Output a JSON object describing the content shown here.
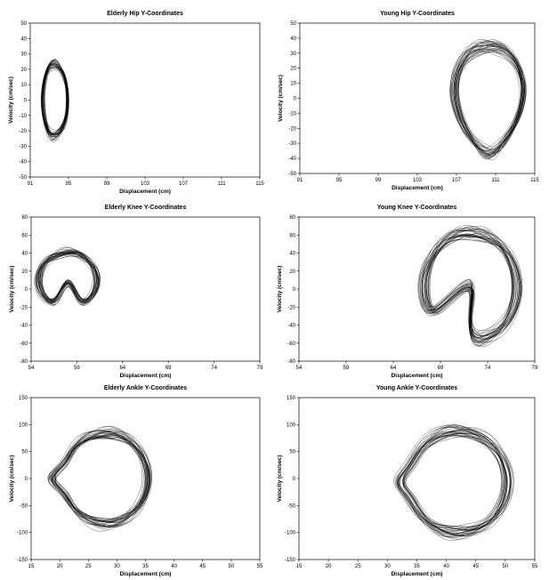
{
  "chart_data": [
    {
      "type": "line",
      "title": "Elderly Hip Y-Coordinates",
      "xlabel": "Displacement (cm)",
      "ylabel": "Velocity (cm/sec)",
      "xlim": [
        91,
        115
      ],
      "ylim": [
        -50,
        50
      ],
      "xticks": [
        "91",
        "95",
        "99",
        "103",
        "107",
        "111",
        "115"
      ],
      "yticks": [
        "50",
        "40",
        "30",
        "20",
        "10",
        "0",
        "-10",
        "-20",
        "-30",
        "-40",
        "-50"
      ],
      "grid": false,
      "series": [
        {
          "loops": 30,
          "x_range": [
            92.1,
            95.1
          ],
          "y_range": [
            -26,
            28
          ],
          "x_center": 93.6,
          "y_center": 0
        }
      ]
    },
    {
      "type": "line",
      "title": "Young Hip Y-Coordinates",
      "xlabel": "Displacement (cm)",
      "ylabel": "Velocity (cm/sec)",
      "xlim": [
        91,
        115
      ],
      "ylim": [
        -50,
        50
      ],
      "xticks": [
        "91",
        "95",
        "99",
        "103",
        "107",
        "111",
        "115"
      ],
      "yticks": [
        "50",
        "40",
        "30",
        "20",
        "10",
        "0",
        "-10",
        "-20",
        "-30",
        "-40",
        "-50"
      ],
      "grid": false,
      "series": [
        {
          "loops": 30,
          "x_range": [
            106.5,
            114
          ],
          "y_range": [
            -41,
            39
          ],
          "x_center": 110.3,
          "y_center": -1
        }
      ]
    },
    {
      "type": "line",
      "title": "Elderly Knee Y-Coordinates",
      "xlabel": "Displacement (cm)",
      "ylabel": "Velocity (cm/sec)",
      "xlim": [
        54,
        79
      ],
      "ylim": [
        -80,
        80
      ],
      "xticks": [
        "54",
        "59",
        "64",
        "69",
        "74",
        "79"
      ],
      "yticks": [
        "80",
        "60",
        "40",
        "20",
        "0",
        "-20",
        "-40",
        "-60",
        "-80"
      ],
      "grid": false,
      "series": [
        {
          "loops": 30,
          "x_range": [
            54.5,
            61.5
          ],
          "y_range": [
            -28,
            48
          ],
          "x_center": 58,
          "y_center": 10
        }
      ]
    },
    {
      "type": "line",
      "title": "Young Knee Y-Coordinates",
      "xlabel": "Displacement (cm)",
      "ylabel": "Velocity (cm/sec)",
      "xlim": [
        54,
        79
      ],
      "ylim": [
        -80,
        80
      ],
      "xticks": [
        "54",
        "59",
        "64",
        "69",
        "74",
        "79"
      ],
      "yticks": [
        "80",
        "60",
        "40",
        "20",
        "0",
        "-20",
        "-40",
        "-60",
        "-80"
      ],
      "grid": false,
      "series": [
        {
          "loops": 30,
          "x_range": [
            67,
            77.5
          ],
          "y_range": [
            -65,
            70
          ],
          "x_center": 72,
          "y_center": 2
        }
      ]
    },
    {
      "type": "line",
      "title": "Elderly Ankle Y-Coordinates",
      "xlabel": "Displacement (cm)",
      "ylabel": "Velocity (cm/sec)",
      "xlim": [
        15,
        55
      ],
      "ylim": [
        -150,
        150
      ],
      "xticks": [
        "15",
        "20",
        "25",
        "30",
        "35",
        "40",
        "45",
        "50",
        "55"
      ],
      "yticks": [
        "150",
        "100",
        "50",
        "0",
        "-50",
        "-100",
        "-150"
      ],
      "grid": false,
      "series": [
        {
          "loops": 30,
          "x_range": [
            19.5,
            35.5
          ],
          "y_range": [
            -90,
            95
          ],
          "x_center": 28.5,
          "y_center": 0
        }
      ]
    },
    {
      "type": "line",
      "title": "Young Ankle Y-Coordinates",
      "xlabel": "Displacement (cm)",
      "ylabel": "Velocity (cm/sec)",
      "xlim": [
        15,
        55
      ],
      "ylim": [
        -150,
        150
      ],
      "xticks": [
        "15",
        "20",
        "25",
        "30",
        "35",
        "40",
        "45",
        "50",
        "55"
      ],
      "yticks": [
        "150",
        "100",
        "50",
        "0",
        "-50",
        "-100",
        "-150"
      ],
      "grid": false,
      "series": [
        {
          "loops": 30,
          "x_range": [
            32.5,
            50.5
          ],
          "y_range": [
            -110,
            95
          ],
          "x_center": 42.5,
          "y_center": -5
        }
      ]
    }
  ]
}
